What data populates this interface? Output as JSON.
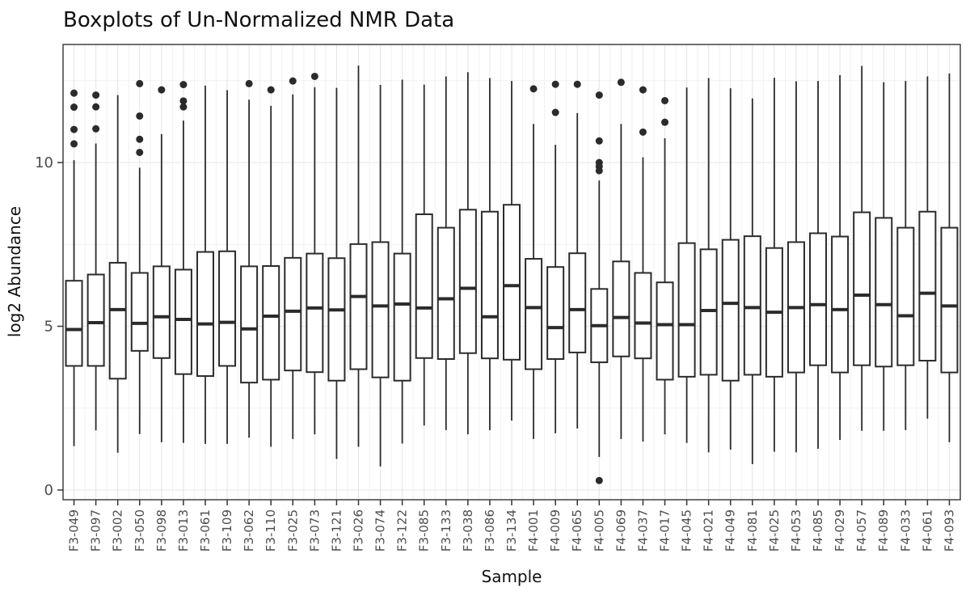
{
  "chart_data": {
    "type": "boxplot",
    "title": "Boxplots of Un-Normalized NMR Data",
    "xlabel": "Sample",
    "ylabel": "log2 Abundance",
    "y_ticks": [
      0,
      5,
      10
    ],
    "y_minor": [
      2.5,
      7.5,
      12.5
    ],
    "ylim": [
      -0.3,
      13.6
    ],
    "grid": true,
    "colors": {
      "box_stroke": "#2b2b2b",
      "box_fill": "#ffffff",
      "grid_major": "#e4e4e4",
      "grid_minor": "#f1f1f1",
      "panel_border": "#333333",
      "tick_mark": "#333333",
      "tick_label": "#4d4d4d",
      "text": "#111111"
    },
    "samples": [
      {
        "name": "F3-049",
        "lo": 1.34,
        "q1": 3.79,
        "med": 4.9,
        "q3": 6.39,
        "hi": 10.07,
        "outliers": [
          12.12,
          11.69,
          11.01,
          10.57
        ]
      },
      {
        "name": "F3-097",
        "lo": 1.82,
        "q1": 3.79,
        "med": 5.11,
        "q3": 6.58,
        "hi": 10.58,
        "outliers": [
          12.06,
          11.7,
          11.03
        ]
      },
      {
        "name": "F3-002",
        "lo": 1.14,
        "q1": 3.4,
        "med": 5.51,
        "q3": 6.94,
        "hi": 12.06,
        "outliers": []
      },
      {
        "name": "F3-050",
        "lo": 1.71,
        "q1": 4.25,
        "med": 5.09,
        "q3": 6.63,
        "hi": 9.84,
        "outliers": [
          12.41,
          11.42,
          10.71,
          10.31
        ]
      },
      {
        "name": "F3-098",
        "lo": 1.46,
        "q1": 4.03,
        "med": 5.29,
        "q3": 6.83,
        "hi": 10.87,
        "outliers": [
          12.22
        ]
      },
      {
        "name": "F3-013",
        "lo": 1.44,
        "q1": 3.54,
        "med": 5.21,
        "q3": 6.73,
        "hi": 11.28,
        "outliers": [
          12.38,
          11.88,
          11.7
        ]
      },
      {
        "name": "F3-061",
        "lo": 1.41,
        "q1": 3.48,
        "med": 5.07,
        "q3": 7.27,
        "hi": 12.35,
        "outliers": []
      },
      {
        "name": "F3-109",
        "lo": 1.41,
        "q1": 3.79,
        "med": 5.12,
        "q3": 7.29,
        "hi": 12.21,
        "outliers": []
      },
      {
        "name": "F3-062",
        "lo": 1.6,
        "q1": 3.28,
        "med": 4.92,
        "q3": 6.83,
        "hi": 11.92,
        "outliers": [
          12.41
        ]
      },
      {
        "name": "F3-110",
        "lo": 1.32,
        "q1": 3.37,
        "med": 5.31,
        "q3": 6.84,
        "hi": 11.73,
        "outliers": [
          12.22
        ]
      },
      {
        "name": "F3-025",
        "lo": 1.56,
        "q1": 3.65,
        "med": 5.46,
        "q3": 7.09,
        "hi": 12.08,
        "outliers": [
          12.49
        ]
      },
      {
        "name": "F3-073",
        "lo": 1.7,
        "q1": 3.6,
        "med": 5.56,
        "q3": 7.22,
        "hi": 12.3,
        "outliers": [
          12.63
        ]
      },
      {
        "name": "F3-121",
        "lo": 0.95,
        "q1": 3.34,
        "med": 5.5,
        "q3": 7.08,
        "hi": 12.28,
        "outliers": []
      },
      {
        "name": "F3-026",
        "lo": 1.32,
        "q1": 3.69,
        "med": 5.91,
        "q3": 7.51,
        "hi": 12.96,
        "outliers": []
      },
      {
        "name": "F3-074",
        "lo": 0.72,
        "q1": 3.44,
        "med": 5.62,
        "q3": 7.57,
        "hi": 12.37,
        "outliers": []
      },
      {
        "name": "F3-122",
        "lo": 1.42,
        "q1": 3.34,
        "med": 5.68,
        "q3": 7.22,
        "hi": 12.53,
        "outliers": []
      },
      {
        "name": "F3-085",
        "lo": 1.97,
        "q1": 4.03,
        "med": 5.56,
        "q3": 8.42,
        "hi": 12.38,
        "outliers": []
      },
      {
        "name": "F3-133",
        "lo": 1.83,
        "q1": 4.0,
        "med": 5.84,
        "q3": 8.01,
        "hi": 12.63,
        "outliers": []
      },
      {
        "name": "F3-038",
        "lo": 1.7,
        "q1": 4.18,
        "med": 6.16,
        "q3": 8.56,
        "hi": 12.76,
        "outliers": []
      },
      {
        "name": "F3-086",
        "lo": 1.83,
        "q1": 4.02,
        "med": 5.29,
        "q3": 8.5,
        "hi": 12.58,
        "outliers": []
      },
      {
        "name": "F3-134",
        "lo": 2.12,
        "q1": 3.98,
        "med": 6.24,
        "q3": 8.71,
        "hi": 12.49,
        "outliers": []
      },
      {
        "name": "F4-001",
        "lo": 1.56,
        "q1": 3.69,
        "med": 5.57,
        "q3": 7.06,
        "hi": 11.18,
        "outliers": [
          12.25
        ]
      },
      {
        "name": "F4-009",
        "lo": 1.73,
        "q1": 4.0,
        "med": 4.96,
        "q3": 6.81,
        "hi": 10.54,
        "outliers": [
          12.39,
          11.53
        ]
      },
      {
        "name": "F4-065",
        "lo": 1.88,
        "q1": 4.2,
        "med": 5.51,
        "q3": 7.23,
        "hi": 11.51,
        "outliers": [
          12.39
        ]
      },
      {
        "name": "F4-005",
        "lo": 1.01,
        "q1": 3.9,
        "med": 5.02,
        "q3": 6.14,
        "hi": 9.45,
        "outliers": [
          12.06,
          10.66,
          10.0,
          9.88,
          9.75,
          0.29
        ]
      },
      {
        "name": "F4-069",
        "lo": 1.56,
        "q1": 4.08,
        "med": 5.27,
        "q3": 6.98,
        "hi": 11.18,
        "outliers": [
          12.45
        ]
      },
      {
        "name": "F4-037",
        "lo": 1.48,
        "q1": 4.02,
        "med": 5.1,
        "q3": 6.63,
        "hi": 10.16,
        "outliers": [
          12.22,
          10.93
        ]
      },
      {
        "name": "F4-017",
        "lo": 1.7,
        "q1": 3.37,
        "med": 5.05,
        "q3": 6.34,
        "hi": 10.74,
        "outliers": [
          11.89,
          11.23
        ]
      },
      {
        "name": "F4-045",
        "lo": 1.44,
        "q1": 3.46,
        "med": 5.05,
        "q3": 7.54,
        "hi": 12.29,
        "outliers": []
      },
      {
        "name": "F4-021",
        "lo": 1.15,
        "q1": 3.52,
        "med": 5.48,
        "q3": 7.35,
        "hi": 12.58,
        "outliers": []
      },
      {
        "name": "F4-049",
        "lo": 1.23,
        "q1": 3.34,
        "med": 5.7,
        "q3": 7.64,
        "hi": 12.27,
        "outliers": []
      },
      {
        "name": "F4-081",
        "lo": 0.79,
        "q1": 3.52,
        "med": 5.57,
        "q3": 7.75,
        "hi": 11.96,
        "outliers": []
      },
      {
        "name": "F4-025",
        "lo": 1.17,
        "q1": 3.46,
        "med": 5.43,
        "q3": 7.39,
        "hi": 12.59,
        "outliers": []
      },
      {
        "name": "F4-053",
        "lo": 1.15,
        "q1": 3.59,
        "med": 5.57,
        "q3": 7.57,
        "hi": 12.48,
        "outliers": []
      },
      {
        "name": "F4-085",
        "lo": 1.26,
        "q1": 3.81,
        "med": 5.66,
        "q3": 7.84,
        "hi": 12.49,
        "outliers": []
      },
      {
        "name": "F4-029",
        "lo": 1.53,
        "q1": 3.59,
        "med": 5.51,
        "q3": 7.74,
        "hi": 12.67,
        "outliers": []
      },
      {
        "name": "F4-057",
        "lo": 1.81,
        "q1": 3.81,
        "med": 5.95,
        "q3": 8.48,
        "hi": 12.95,
        "outliers": []
      },
      {
        "name": "F4-089",
        "lo": 1.81,
        "q1": 3.77,
        "med": 5.66,
        "q3": 8.31,
        "hi": 12.45,
        "outliers": []
      },
      {
        "name": "F4-033",
        "lo": 1.83,
        "q1": 3.81,
        "med": 5.32,
        "q3": 8.01,
        "hi": 12.49,
        "outliers": []
      },
      {
        "name": "F4-061",
        "lo": 2.18,
        "q1": 3.95,
        "med": 6.01,
        "q3": 8.5,
        "hi": 12.63,
        "outliers": []
      },
      {
        "name": "F4-093",
        "lo": 1.46,
        "q1": 3.59,
        "med": 5.62,
        "q3": 8.01,
        "hi": 12.72,
        "outliers": []
      }
    ]
  }
}
